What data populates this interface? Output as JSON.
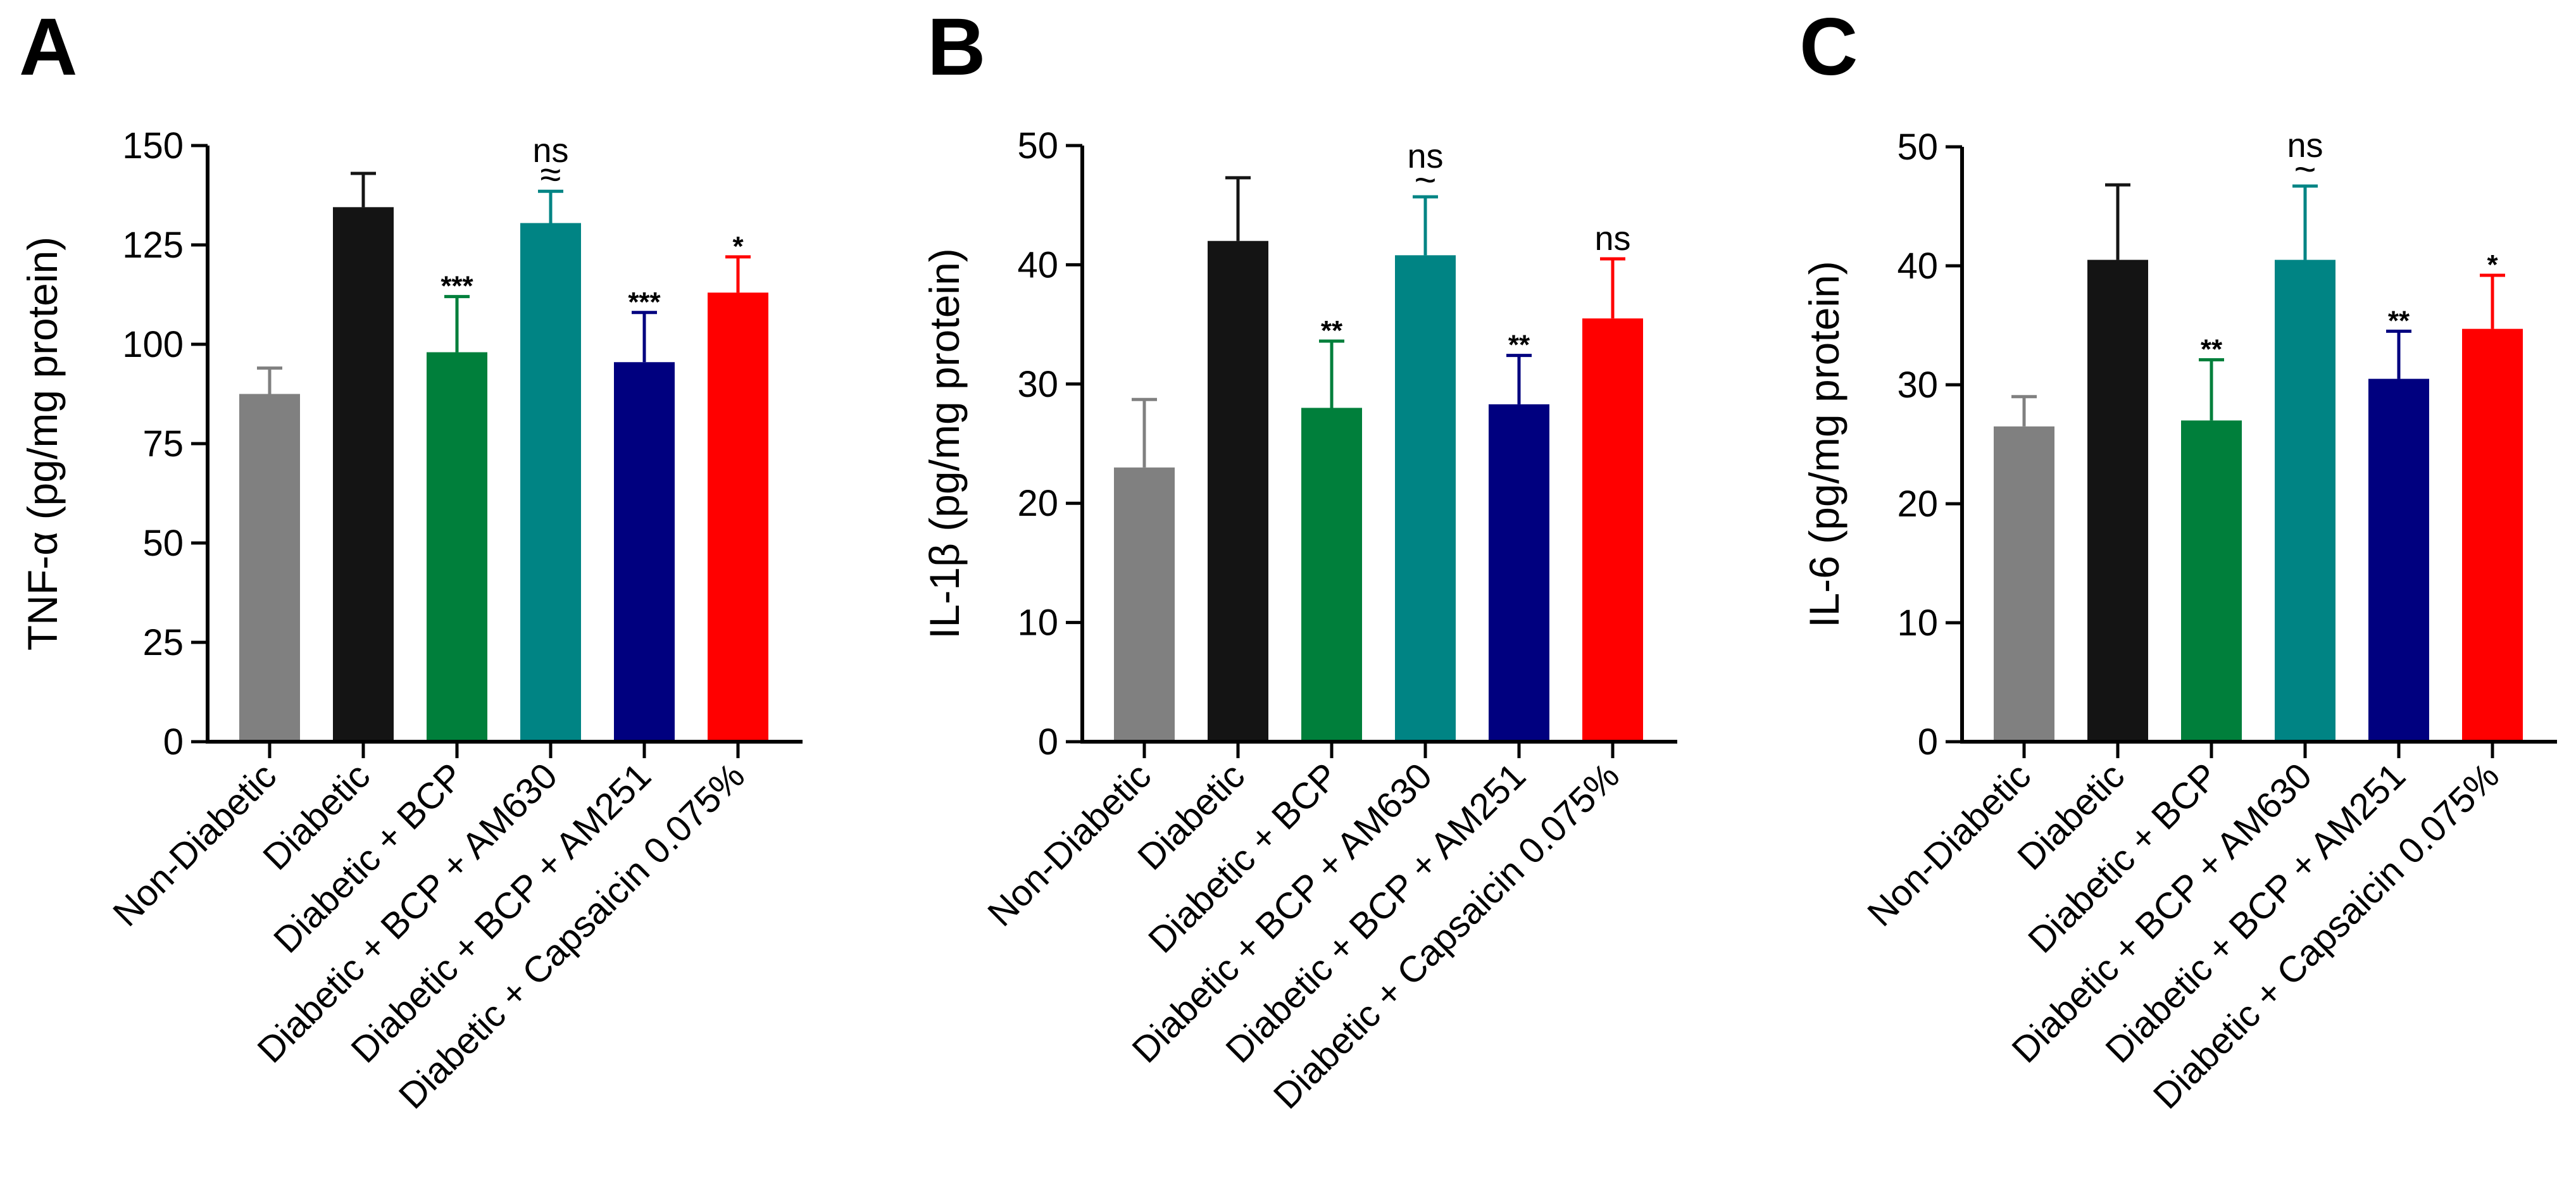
{
  "categories": [
    "Non-Diabetic",
    "Diabetic",
    "Diabetic + BCP",
    "Diabetic + BCP + AM630",
    "Diabetic + BCP + AM251",
    "Diabetic + Capsaicin 0.075%"
  ],
  "colors": [
    "#808080",
    "#141414",
    "#007f3b",
    "#008484",
    "#00007f",
    "#ff0000"
  ],
  "chart_data": [
    {
      "type": "bar",
      "panel": "A",
      "ylabel": "TNF-α (pg/mg protein)",
      "ylim": [
        0,
        150
      ],
      "yticks": [
        0,
        25,
        50,
        75,
        100,
        125,
        150
      ],
      "categories": [
        "Non-Diabetic",
        "Diabetic",
        "Diabetic + BCP",
        "Diabetic + BCP + AM630",
        "Diabetic + BCP + AM251",
        "Diabetic + Capsaicin 0.075%"
      ],
      "values": [
        87.5,
        134.5,
        98,
        130.5,
        95.5,
        113
      ],
      "errors": [
        6.5,
        8.5,
        14,
        8,
        12.5,
        9
      ],
      "annotations": [
        "",
        "",
        "***",
        "ns",
        "***",
        "*"
      ],
      "annotation_symbols": [
        "",
        "",
        "",
        "≈",
        "",
        ""
      ]
    },
    {
      "type": "bar",
      "panel": "B",
      "ylabel": "IL-1β  (pg/mg protein)",
      "ylim": [
        0,
        50
      ],
      "yticks": [
        0,
        10,
        20,
        30,
        40,
        50
      ],
      "categories": [
        "Non-Diabetic",
        "Diabetic",
        "Diabetic + BCP",
        "Diabetic + BCP + AM630",
        "Diabetic + BCP + AM251",
        "Diabetic + Capsaicin 0.075%"
      ],
      "values": [
        23,
        42,
        28,
        40.8,
        28.3,
        35.5
      ],
      "errors": [
        5.7,
        5.3,
        5.6,
        4.9,
        4.1,
        5
      ],
      "annotations": [
        "",
        "",
        "**",
        "ns",
        "**",
        "ns"
      ],
      "annotation_symbols": [
        "",
        "",
        "",
        "~",
        "",
        ""
      ]
    },
    {
      "type": "bar",
      "panel": "C",
      "ylabel": "IL-6 (pg/mg protein)",
      "ylim": [
        0,
        50
      ],
      "yticks": [
        0,
        10,
        20,
        30,
        40,
        50
      ],
      "categories": [
        "Non-Diabetic",
        "Diabetic",
        "Diabetic + BCP",
        "Diabetic + BCP + AM630",
        "Diabetic + BCP + AM251",
        "Diabetic + Capsaicin 0.075%"
      ],
      "values": [
        26.5,
        40.5,
        27,
        40.5,
        30.5,
        34.7
      ],
      "errors": [
        2.5,
        6.3,
        5.1,
        6.2,
        4,
        4.5
      ],
      "annotations": [
        "",
        "",
        "**",
        "ns",
        "**",
        "*"
      ],
      "annotation_symbols": [
        "",
        "",
        "",
        "~",
        "",
        ""
      ]
    }
  ]
}
